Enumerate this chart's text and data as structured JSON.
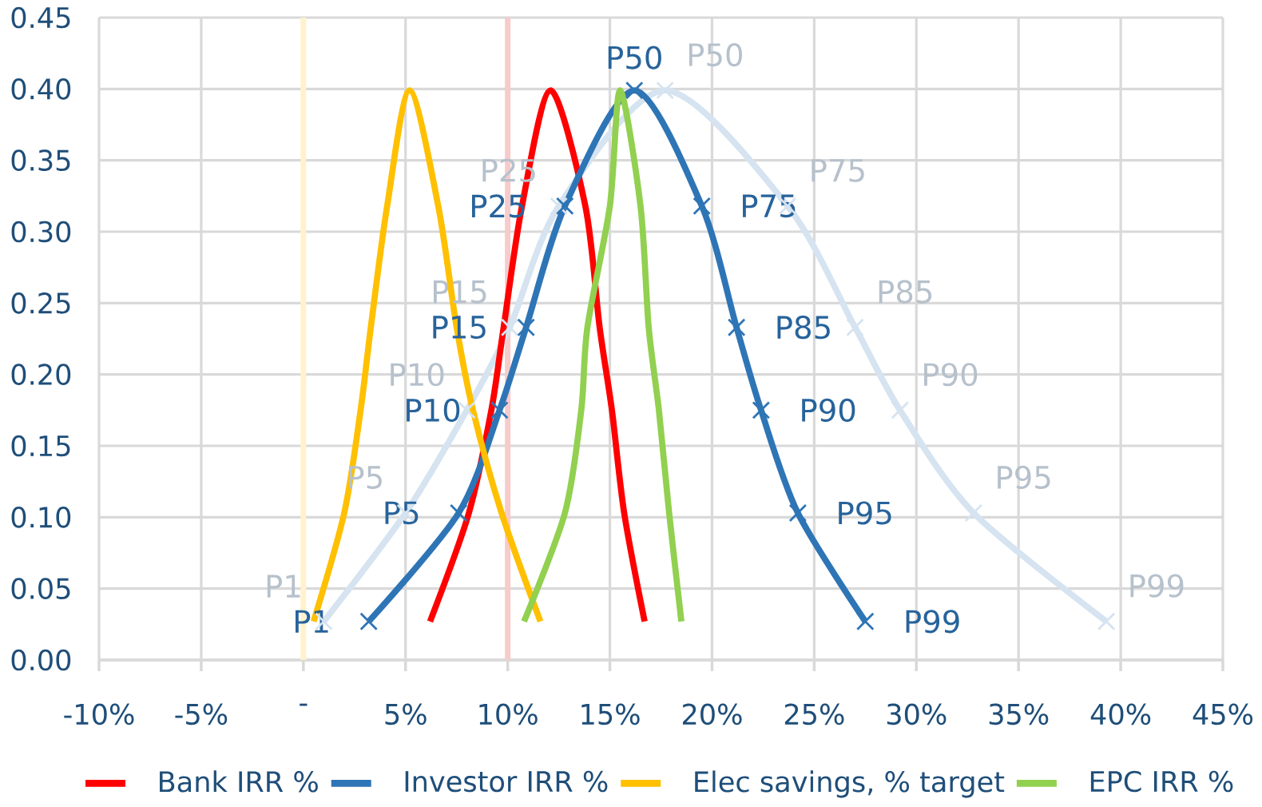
{
  "chart_data": {
    "type": "line",
    "xlim": [
      -10,
      45
    ],
    "ylim": [
      0,
      0.45
    ],
    "xticks": [
      {
        "value": -10,
        "label": "-10%"
      },
      {
        "value": -5,
        "label": "-5%"
      },
      {
        "value": 0,
        "label": "-"
      },
      {
        "value": 5,
        "label": "5%"
      },
      {
        "value": 10,
        "label": "10%"
      },
      {
        "value": 15,
        "label": "15%"
      },
      {
        "value": 20,
        "label": "20%"
      },
      {
        "value": 25,
        "label": "25%"
      },
      {
        "value": 30,
        "label": "30%"
      },
      {
        "value": 35,
        "label": "35%"
      },
      {
        "value": 40,
        "label": "40%"
      },
      {
        "value": 45,
        "label": "45%"
      }
    ],
    "yticks": [
      {
        "value": 0,
        "label": "0.00"
      },
      {
        "value": 0.05,
        "label": "0.05"
      },
      {
        "value": 0.1,
        "label": "0.10"
      },
      {
        "value": 0.15,
        "label": "0.15"
      },
      {
        "value": 0.2,
        "label": "0.20"
      },
      {
        "value": 0.25,
        "label": "0.25"
      },
      {
        "value": 0.3,
        "label": "0.30"
      },
      {
        "value": 0.35,
        "label": "0.35"
      },
      {
        "value": 0.4,
        "label": "0.40"
      },
      {
        "value": 0.45,
        "label": "0.45"
      }
    ],
    "grid": true,
    "legend": "bottom",
    "ref_lines": [
      {
        "axis": "x",
        "value": 0,
        "color": "#fff2cc"
      },
      {
        "axis": "x",
        "value": 10,
        "color": "#f8cbcb"
      }
    ],
    "series": [
      {
        "color": "#d6e3f0",
        "marker": "cross",
        "x": [
          1.0,
          5.0,
          8.0,
          10.1,
          12.5,
          17.7,
          23.7,
          27.0,
          29.2,
          32.8,
          39.3
        ],
        "values": [
          0.027,
          0.103,
          0.175,
          0.233,
          0.318,
          0.399,
          0.318,
          0.233,
          0.175,
          0.103,
          0.027
        ],
        "value_labels": [
          "P1",
          "P5",
          "P10",
          "P15",
          "P25",
          "P50",
          "P75",
          "P85",
          "P90",
          "P95",
          "P99"
        ]
      },
      {
        "name": "Bank IRR %",
        "color": "#ff0000",
        "x": [
          6.2,
          8.1,
          9.2,
          9.8,
          10.7,
          12.1,
          13.8,
          14.5,
          15.1,
          15.7,
          16.7
        ],
        "values": [
          0.027,
          0.103,
          0.175,
          0.233,
          0.318,
          0.399,
          0.318,
          0.233,
          0.175,
          0.103,
          0.027
        ]
      },
      {
        "name": "Investor IRR %",
        "color": "#2e75b6",
        "marker": "cross",
        "x": [
          3.2,
          7.6,
          9.6,
          10.9,
          12.8,
          16.2,
          19.5,
          21.2,
          22.4,
          24.2,
          27.5
        ],
        "values": [
          0.027,
          0.103,
          0.175,
          0.233,
          0.318,
          0.399,
          0.318,
          0.233,
          0.175,
          0.103,
          0.027
        ],
        "value_labels": [
          "P1",
          "P5",
          "P10",
          "P15",
          "P25",
          "P50",
          "P75",
          "P85",
          "P90",
          "P95",
          "P99"
        ]
      },
      {
        "name": "Elec savings, % target",
        "color": "#ffc000",
        "x": [
          0.5,
          2.0,
          2.8,
          3.3,
          4.1,
          5.2,
          6.6,
          7.5,
          8.3,
          9.7,
          11.6
        ],
        "values": [
          0.027,
          0.103,
          0.175,
          0.233,
          0.318,
          0.399,
          0.318,
          0.233,
          0.175,
          0.103,
          0.027
        ]
      },
      {
        "name": "EPC IRR %",
        "color": "#92d050",
        "x": [
          10.8,
          12.8,
          13.6,
          13.9,
          15.0,
          15.5,
          16.5,
          16.9,
          17.4,
          17.9,
          18.5
        ],
        "values": [
          0.027,
          0.103,
          0.175,
          0.233,
          0.318,
          0.399,
          0.318,
          0.233,
          0.175,
          0.103,
          0.027
        ]
      }
    ]
  }
}
